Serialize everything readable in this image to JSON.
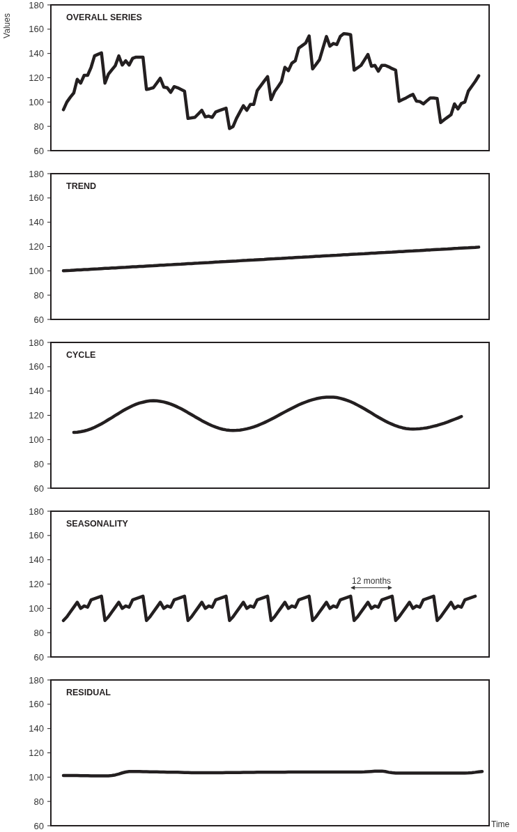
{
  "chart_data": [
    {
      "type": "line",
      "title": "OVERALL SERIES",
      "ylabel": "Values",
      "tick_labels": "y",
      "ylim": [
        60,
        180
      ],
      "yticks": [
        60,
        80,
        100,
        120,
        140,
        160,
        180
      ],
      "categories": [
        null,
        null,
        null,
        null,
        null,
        null,
        null,
        null,
        null,
        null,
        null,
        null,
        null,
        null,
        null,
        null,
        null,
        null,
        null,
        null,
        null,
        null,
        null,
        null,
        null,
        null,
        null,
        null,
        null,
        null,
        null,
        null,
        null,
        null,
        null,
        null,
        null,
        null,
        null,
        null,
        null,
        null,
        null,
        null,
        null,
        null,
        null,
        null,
        null,
        null,
        null,
        null,
        null,
        null,
        null,
        null,
        null,
        null,
        null,
        null,
        null,
        null,
        null,
        null,
        null,
        null,
        null,
        null,
        null,
        null,
        null,
        null,
        null,
        null,
        null,
        null,
        null,
        null,
        null,
        null,
        null,
        null,
        null,
        null,
        null,
        null,
        null,
        null,
        null,
        null,
        null,
        null,
        null,
        null,
        null,
        null,
        null,
        null,
        null,
        null,
        null,
        null,
        null,
        null,
        null,
        null,
        null,
        null,
        null,
        null,
        null,
        null,
        null,
        null,
        null,
        null,
        null,
        null,
        null,
        null,
        null,
        null
      ],
      "series": [
        {
          "color": "#231f20",
          "values": [
            93.7,
            100,
            104,
            107.5,
            118.7,
            115.6,
            122,
            122,
            128.6,
            138,
            139.3,
            140.5,
            115.6,
            122.9,
            126.5,
            130,
            138,
            130.5,
            134,
            130.5,
            136,
            137,
            137,
            137,
            110.4,
            111,
            111.8,
            115.7,
            119.6,
            112.3,
            111.8,
            108,
            112.7,
            111.8,
            110.4,
            109,
            86.5,
            87,
            87.4,
            90.3,
            93.2,
            87.8,
            88.4,
            87.4,
            91.8,
            92.9,
            94,
            95,
            78.2,
            79.8,
            86.5,
            91.8,
            97,
            93.2,
            98,
            98,
            109.5,
            113.3,
            117.2,
            121,
            102,
            108.5,
            112.5,
            116.8,
            128.6,
            125.8,
            132,
            134,
            144.4,
            146.5,
            148.6,
            154.4,
            127.3,
            131,
            134.9,
            144.5,
            154,
            146,
            148.2,
            147.3,
            154,
            156.3,
            156,
            155.5,
            126.3,
            128.2,
            130.2,
            134.7,
            139.2,
            129.5,
            130.2,
            125.4,
            130.2,
            130.2,
            129,
            127.5,
            126.3,
            100.6,
            102,
            103.4,
            105,
            106.3,
            100.8,
            100.4,
            98.5,
            101,
            103.4,
            103.4,
            102.9,
            83.1,
            85.4,
            87.5,
            89.6,
            98.5,
            94.3,
            98.9,
            100,
            109,
            113,
            117,
            121.6,
            null
          ]
        }
      ]
    },
    {
      "type": "line",
      "title": "TREND",
      "tick_labels": "y",
      "ylim": [
        60,
        180
      ],
      "yticks": [
        60,
        80,
        100,
        120,
        140,
        160,
        180
      ],
      "categories": [
        null,
        null,
        null,
        null,
        null,
        null,
        null,
        null,
        null,
        null,
        null,
        null,
        null,
        null,
        null,
        null,
        null,
        null,
        null,
        null,
        null,
        null,
        null,
        null,
        null,
        null,
        null,
        null,
        null,
        null,
        null,
        null,
        null,
        null,
        null,
        null,
        null,
        null,
        null,
        null,
        null,
        null,
        null,
        null,
        null,
        null,
        null,
        null,
        null,
        null,
        null,
        null,
        null,
        null,
        null,
        null,
        null,
        null,
        null,
        null,
        null,
        null,
        null,
        null,
        null,
        null,
        null,
        null,
        null,
        null,
        null,
        null,
        null,
        null,
        null,
        null,
        null,
        null,
        null,
        null,
        null,
        null,
        null,
        null,
        null,
        null,
        null,
        null,
        null,
        null,
        null,
        null,
        null,
        null,
        null,
        null,
        null,
        null,
        null,
        null,
        null,
        null,
        null,
        null,
        null,
        null,
        null,
        null,
        null,
        null,
        null,
        null,
        null,
        null,
        null,
        null,
        null,
        null,
        null,
        null,
        null,
        null
      ],
      "series": [
        {
          "color": "#231f20",
          "values": [
            100.0,
            100.2,
            100.3,
            100.5,
            100.7,
            100.8,
            101.0,
            101.1,
            101.3,
            101.5,
            101.6,
            101.8,
            102.0,
            102.1,
            102.3,
            102.4,
            102.6,
            102.8,
            102.9,
            103.1,
            103.3,
            103.4,
            103.6,
            103.7,
            103.9,
            104.1,
            104.2,
            104.4,
            104.6,
            104.7,
            104.9,
            105.0,
            105.2,
            105.4,
            105.5,
            105.7,
            105.9,
            106.0,
            106.2,
            106.3,
            106.5,
            106.7,
            106.8,
            107.0,
            107.2,
            107.3,
            107.5,
            107.6,
            107.8,
            108.0,
            108.1,
            108.3,
            108.5,
            108.6,
            108.8,
            108.9,
            109.1,
            109.3,
            109.4,
            109.6,
            109.8,
            109.9,
            110.1,
            110.2,
            110.4,
            110.6,
            110.7,
            110.9,
            111.1,
            111.2,
            111.4,
            111.5,
            111.7,
            111.9,
            112.0,
            112.2,
            112.4,
            112.5,
            112.7,
            112.8,
            113.0,
            113.2,
            113.3,
            113.5,
            113.7,
            113.8,
            114.0,
            114.1,
            114.3,
            114.5,
            114.6,
            114.8,
            115.0,
            115.1,
            115.3,
            115.4,
            115.6,
            115.8,
            115.9,
            116.1,
            116.3,
            116.4,
            116.6,
            116.7,
            116.9,
            117.1,
            117.2,
            117.4,
            117.6,
            117.7,
            117.9,
            118.0,
            118.2,
            118.4,
            118.5,
            118.7,
            118.9,
            119.0,
            119.2,
            119.3,
            119.5,
            null
          ]
        }
      ]
    },
    {
      "type": "line",
      "title": "CYCLE",
      "tick_labels": "y",
      "ylim": [
        60,
        180
      ],
      "yticks": [
        60,
        80,
        100,
        120,
        140,
        160,
        180
      ],
      "categories": [
        null,
        null,
        null,
        null,
        null,
        null,
        null,
        null,
        null,
        null,
        null,
        null,
        null,
        null,
        null,
        null,
        null,
        null,
        null,
        null,
        null,
        null,
        null,
        null,
        null,
        null,
        null,
        null,
        null,
        null,
        null,
        null,
        null,
        null,
        null,
        null,
        null,
        null,
        null,
        null,
        null,
        null,
        null,
        null,
        null,
        null,
        null,
        null,
        null,
        null,
        null,
        null,
        null,
        null,
        null,
        null,
        null,
        null,
        null,
        null,
        null,
        null,
        null,
        null,
        null,
        null,
        null,
        null,
        null,
        null,
        null,
        null,
        null,
        null,
        null,
        null,
        null,
        null,
        null,
        null,
        null,
        null,
        null,
        null,
        null,
        null,
        null,
        null,
        null,
        null,
        null,
        null,
        null,
        null,
        null,
        null,
        null,
        null,
        null,
        null,
        null,
        null,
        null,
        null,
        null,
        null,
        null,
        null,
        null,
        null,
        null,
        null,
        null,
        null,
        null,
        null,
        null,
        null,
        null,
        null,
        null,
        null
      ],
      "series": [
        {
          "color": "#231f20",
          "values": [
            null,
            null,
            null,
            106.0,
            106.1,
            106.5,
            107.1,
            107.9,
            108.9,
            110.1,
            111.5,
            113.0,
            114.6,
            116.4,
            118.1,
            119.9,
            121.6,
            123.4,
            125.0,
            126.5,
            127.9,
            129.1,
            130.1,
            130.8,
            131.5,
            131.9,
            132.0,
            131.9,
            131.5,
            131.0,
            130.2,
            129.3,
            128.1,
            126.8,
            125.4,
            123.9,
            122.2,
            120.6,
            118.9,
            117.3,
            115.6,
            114.1,
            112.7,
            111.4,
            110.3,
            109.3,
            108.5,
            108.0,
            107.6,
            107.5,
            107.6,
            107.8,
            108.3,
            108.9,
            109.6,
            110.5,
            111.5,
            112.7,
            113.9,
            115.3,
            116.7,
            118.2,
            119.7,
            121.3,
            122.8,
            124.3,
            125.8,
            127.2,
            128.6,
            129.8,
            130.9,
            132.0,
            132.8,
            133.6,
            134.2,
            134.7,
            134.9,
            135.0,
            134.9,
            134.6,
            134.0,
            133.2,
            132.3,
            131.2,
            129.9,
            128.4,
            126.9,
            125.3,
            123.6,
            121.9,
            120.1,
            118.4,
            116.8,
            115.3,
            113.8,
            112.6,
            111.4,
            110.5,
            109.7,
            109.1,
            108.8,
            108.7,
            108.8,
            109.0,
            109.3,
            109.7,
            110.3,
            111.0,
            111.7,
            112.6,
            113.5,
            114.5,
            115.6,
            116.7,
            117.8,
            119.0,
            null,
            null,
            null,
            null,
            null,
            null
          ]
        }
      ]
    },
    {
      "type": "line",
      "title": "SEASONALITY",
      "tick_labels": "y",
      "ylim": [
        60,
        180
      ],
      "yticks": [
        60,
        80,
        100,
        120,
        140,
        160,
        180
      ],
      "annotations": [
        "12 months"
      ],
      "categories": [
        null,
        null,
        null,
        null,
        null,
        null,
        null,
        null,
        null,
        null,
        null,
        null,
        null,
        null,
        null,
        null,
        null,
        null,
        null,
        null,
        null,
        null,
        null,
        null,
        null,
        null,
        null,
        null,
        null,
        null,
        null,
        null,
        null,
        null,
        null,
        null,
        null,
        null,
        null,
        null,
        null,
        null,
        null,
        null,
        null,
        null,
        null,
        null,
        null,
        null,
        null,
        null,
        null,
        null,
        null,
        null,
        null,
        null,
        null,
        null,
        null,
        null,
        null,
        null,
        null,
        null,
        null,
        null,
        null,
        null,
        null,
        null,
        null,
        null,
        null,
        null,
        null,
        null,
        null,
        null,
        null,
        null,
        null,
        null,
        null,
        null,
        null,
        null,
        null,
        null,
        null,
        null,
        null,
        null,
        null,
        null,
        null,
        null,
        null,
        null,
        null,
        null,
        null,
        null,
        null,
        null,
        null,
        null,
        null,
        null,
        null,
        null,
        null,
        null,
        null,
        null,
        null,
        null,
        null,
        null,
        null,
        null
      ],
      "series": [
        {
          "color": "#231f20",
          "values": [
            90,
            93,
            97,
            101,
            105,
            100,
            102,
            101,
            107,
            108,
            109,
            110,
            90,
            93,
            97,
            101,
            105,
            100,
            102,
            101,
            107,
            108,
            109,
            110,
            90,
            93,
            97,
            101,
            105,
            100,
            102,
            101,
            107,
            108,
            109,
            110,
            90,
            93,
            97,
            101,
            105,
            100,
            102,
            101,
            107,
            108,
            109,
            110,
            90,
            93,
            97,
            101,
            105,
            100,
            102,
            101,
            107,
            108,
            109,
            110,
            90,
            93,
            97,
            101,
            105,
            100,
            102,
            101,
            107,
            108,
            109,
            110,
            90,
            93,
            97,
            101,
            105,
            100,
            102,
            101,
            107,
            108,
            109,
            110,
            90,
            93,
            97,
            101,
            105,
            100,
            102,
            101,
            107,
            108,
            109,
            110,
            90,
            93,
            97,
            101,
            105,
            100,
            102,
            101,
            107,
            108,
            109,
            110,
            90,
            93,
            97,
            101,
            105,
            100,
            102,
            101,
            107,
            108,
            109,
            110,
            null,
            null
          ]
        }
      ]
    },
    {
      "type": "line",
      "title": "RESIDUAL",
      "xlabel": "Time",
      "tick_labels": "y",
      "ylim": [
        60,
        180
      ],
      "yticks": [
        60,
        80,
        100,
        120,
        140,
        160,
        180
      ],
      "categories": [
        null,
        null,
        null,
        null,
        null,
        null,
        null,
        null,
        null,
        null,
        null,
        null,
        null,
        null,
        null,
        null,
        null,
        null,
        null,
        null,
        null,
        null,
        null,
        null,
        null,
        null,
        null,
        null,
        null,
        null,
        null,
        null,
        null,
        null,
        null,
        null,
        null,
        null,
        null,
        null,
        null,
        null,
        null,
        null,
        null,
        null,
        null,
        null,
        null,
        null,
        null,
        null,
        null,
        null,
        null,
        null,
        null,
        null,
        null,
        null,
        null,
        null,
        null,
        null,
        null,
        null,
        null,
        null,
        null,
        null,
        null,
        null,
        null,
        null,
        null,
        null,
        null,
        null,
        null,
        null,
        null,
        null,
        null,
        null,
        null,
        null,
        null,
        null,
        null,
        null,
        null,
        null,
        null,
        null,
        null,
        null,
        null,
        null,
        null,
        null,
        null,
        null,
        null,
        null,
        null,
        null,
        null,
        null,
        null,
        null,
        null,
        null,
        null,
        null,
        null,
        null,
        null,
        null,
        null,
        null,
        null,
        null
      ],
      "series": [
        {
          "color": "#231f20",
          "values": [
            101.4,
            101.4,
            101.3,
            101.3,
            101.3,
            101.2,
            101.2,
            101.2,
            101.1,
            101.1,
            101.1,
            101.1,
            101.1,
            101.1,
            101.3,
            101.8,
            102.6,
            103.5,
            104.2,
            104.6,
            104.7,
            104.6,
            104.6,
            104.5,
            104.5,
            104.4,
            104.4,
            104.3,
            104.2,
            104.2,
            104.1,
            104.1,
            104.0,
            104.0,
            103.9,
            103.8,
            103.8,
            103.7,
            103.7,
            103.6,
            103.6,
            103.6,
            103.6,
            103.7,
            103.7,
            103.7,
            103.7,
            103.8,
            103.8,
            103.8,
            103.8,
            103.8,
            103.9,
            103.9,
            103.9,
            103.9,
            104.0,
            104.0,
            104.0,
            104.0,
            104.1,
            104.1,
            104.1,
            104.1,
            104.1,
            104.2,
            104.2,
            104.2,
            104.2,
            104.2,
            104.2,
            104.2,
            104.2,
            104.2,
            104.2,
            104.2,
            104.2,
            104.2,
            104.2,
            104.2,
            104.2,
            104.2,
            104.2,
            104.2,
            104.2,
            104.2,
            104.2,
            104.3,
            104.5,
            104.7,
            104.9,
            105.0,
            105.0,
            104.6,
            104.0,
            103.6,
            103.4,
            103.4,
            103.4,
            103.4,
            103.4,
            103.4,
            103.4,
            103.4,
            103.4,
            103.4,
            103.4,
            103.4,
            103.4,
            103.4,
            103.4,
            103.4,
            103.4,
            103.4,
            103.4,
            103.4,
            103.4,
            103.5,
            103.7,
            104.0,
            104.4,
            104.7
          ]
        }
      ]
    }
  ]
}
